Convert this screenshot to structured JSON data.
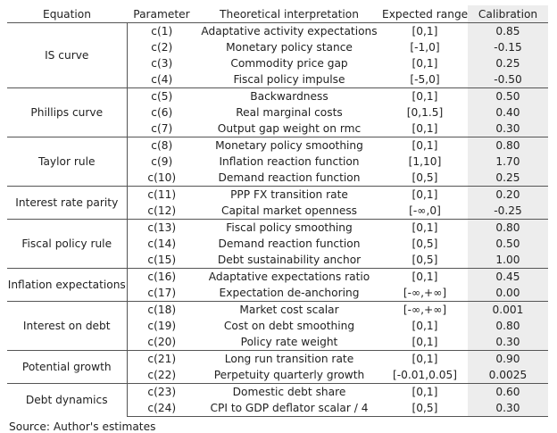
{
  "headers": [
    "Equation",
    "Parameter",
    "Theoretical interpretation",
    "Expected range",
    "Calibration"
  ],
  "groups": [
    {
      "equation": "IS curve",
      "rows": [
        [
          "c(1)",
          "Adaptative activity expectations",
          "[0,1]",
          "0.85"
        ],
        [
          "c(2)",
          "Monetary policy stance",
          "[-1,0]",
          "-0.15"
        ],
        [
          "c(3)",
          "Commodity price gap",
          "[0,1]",
          "0.25"
        ],
        [
          "c(4)",
          "Fiscal policy impulse",
          "[-5,0]",
          "-0.50"
        ]
      ]
    },
    {
      "equation": "Phillips curve",
      "rows": [
        [
          "c(5)",
          "Backwardness",
          "[0,1]",
          "0.50"
        ],
        [
          "c(6)",
          "Real marginal costs",
          "[0,1.5]",
          "0.40"
        ],
        [
          "c(7)",
          "Output gap weight on rmc",
          "[0,1]",
          "0.30"
        ]
      ]
    },
    {
      "equation": "Taylor rule",
      "rows": [
        [
          "c(8)",
          "Monetary policy smoothing",
          "[0,1]",
          "0.80"
        ],
        [
          "c(9)",
          "Inflation reaction function",
          "[1,10]",
          "1.70"
        ],
        [
          "c(10)",
          "Demand reaction function",
          "[0,5]",
          "0.25"
        ]
      ]
    },
    {
      "equation": "Interest rate parity",
      "rows": [
        [
          "c(11)",
          "PPP FX transition rate",
          "[0,1]",
          "0.20"
        ],
        [
          "c(12)",
          "Capital market openness",
          "[-∞,0]",
          "-0.25"
        ]
      ]
    },
    {
      "equation": "Fiscal policy rule",
      "rows": [
        [
          "c(13)",
          "Fiscal policy smoothing",
          "[0,1]",
          "0.80"
        ],
        [
          "c(14)",
          "Demand reaction function",
          "[0,5]",
          "0.50"
        ],
        [
          "c(15)",
          "Debt sustainability anchor",
          "[0,5]",
          "1.00"
        ]
      ]
    },
    {
      "equation": "Inflation expectations",
      "rows": [
        [
          "c(16)",
          "Adaptative expectations ratio",
          "[0,1]",
          "0.45"
        ],
        [
          "c(17)",
          "Expectation de-anchoring",
          "[-∞,+∞]",
          "0.00"
        ]
      ]
    },
    {
      "equation": "Interest on debt",
      "rows": [
        [
          "c(18)",
          "Market cost scalar",
          "[-∞,+∞]",
          "0.001"
        ],
        [
          "c(19)",
          "Cost on debt smoothing",
          "[0,1]",
          "0.80"
        ],
        [
          "c(20)",
          "Policy rate weight",
          "[0,1]",
          "0.30"
        ]
      ]
    },
    {
      "equation": "Potential growth",
      "rows": [
        [
          "c(21)",
          "Long run transition rate",
          "[0,1]",
          "0.90"
        ],
        [
          "c(22)",
          "Perpetuity quarterly growth",
          "[-0.01,0.05]",
          "0.0025"
        ]
      ]
    },
    {
      "equation": "Debt dynamics",
      "rows": [
        [
          "c(23)",
          "Domestic debt share",
          "[0,1]",
          "0.60"
        ],
        [
          "c(24)",
          "CPI to GDP deflator scalar / 4",
          "[0,5]",
          "0.30"
        ]
      ]
    }
  ],
  "source": "Source: Author's estimates"
}
